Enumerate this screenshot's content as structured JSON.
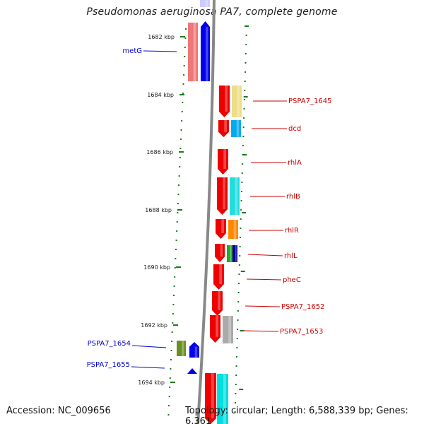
{
  "title": "Pseudomonas aeruginosa PA7, complete genome",
  "footer": {
    "accession": "Accession: NC_009656",
    "topology": "Topology: circular; Length: 6,588,339 bp; Genes: 6,361"
  },
  "colors": {
    "forward_strand_label": "#0000cc",
    "reverse_strand_label": "#cc0000",
    "tick_mark": "#1a7a1a",
    "backbone": "#888888"
  },
  "ticks": [
    {
      "label": "1682 kbp"
    },
    {
      "label": "1684 kbp"
    },
    {
      "label": "1686 kbp"
    },
    {
      "label": "1688 kbp"
    },
    {
      "label": "1690 kbp"
    },
    {
      "label": "1692 kbp"
    },
    {
      "label": "1694 kbp"
    }
  ],
  "genes": [
    {
      "label": "metG",
      "strand": "forward"
    },
    {
      "label": "PSPA7_1645",
      "strand": "reverse"
    },
    {
      "label": "dcd",
      "strand": "reverse"
    },
    {
      "label": "rhlA",
      "strand": "reverse"
    },
    {
      "label": "rhlB",
      "strand": "reverse"
    },
    {
      "label": "rhlR",
      "strand": "reverse"
    },
    {
      "label": "rhlL",
      "strand": "reverse"
    },
    {
      "label": "pheC",
      "strand": "reverse"
    },
    {
      "label": "PSPA7_1652",
      "strand": "reverse"
    },
    {
      "label": "PSPA7_1653",
      "strand": "reverse"
    },
    {
      "label": "PSPA7_1654",
      "strand": "forward"
    },
    {
      "label": "PSPA7_1655",
      "strand": "forward"
    }
  ]
}
